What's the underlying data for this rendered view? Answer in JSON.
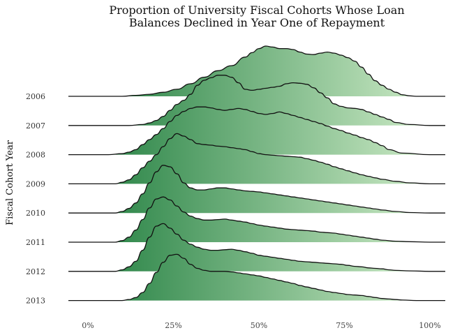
{
  "chart_data": {
    "type": "ridgeline",
    "title_lines": [
      "Proportion of University Fiscal Cohorts Whose Loan",
      "Balances Declined in Year One of Repayment"
    ],
    "xlabel": "",
    "ylabel": "Fiscal Cohort Year",
    "xlim": [
      0,
      100
    ],
    "xticks": [
      0,
      25,
      50,
      75,
      100
    ],
    "xtick_labels": [
      "0%",
      "25%",
      "50%",
      "75%",
      "100%"
    ],
    "grid": false,
    "fill_gradient": [
      "#1a7a3a",
      "#d4efcc"
    ],
    "series": [
      {
        "name": "2006",
        "x": [
          0,
          10,
          14,
          18,
          22,
          26,
          30,
          34,
          38,
          42,
          46,
          48,
          50,
          52,
          54,
          56,
          58,
          60,
          62,
          64,
          66,
          68,
          70,
          72,
          74,
          76,
          78,
          80,
          82,
          84,
          86,
          88,
          90,
          92,
          94,
          96,
          98,
          100
        ],
        "y": [
          0,
          0,
          0.02,
          0.04,
          0.08,
          0.14,
          0.25,
          0.38,
          0.51,
          0.61,
          0.78,
          0.87,
          0.95,
          1.0,
          0.98,
          0.95,
          0.95,
          0.93,
          0.88,
          0.84,
          0.83,
          0.86,
          0.88,
          0.86,
          0.82,
          0.77,
          0.7,
          0.58,
          0.44,
          0.31,
          0.22,
          0.14,
          0.08,
          0.03,
          0.01,
          0,
          0,
          0
        ]
      },
      {
        "name": "2007",
        "x": [
          0,
          12,
          16,
          18,
          20,
          22,
          24,
          26,
          28,
          30,
          32,
          34,
          36,
          38,
          40,
          42,
          44,
          46,
          48,
          50,
          52,
          54,
          56,
          58,
          60,
          62,
          64,
          66,
          68,
          70,
          72,
          74,
          76,
          78,
          80,
          82,
          84,
          86,
          88,
          90,
          94,
          100
        ],
        "y": [
          0,
          0,
          0.02,
          0.05,
          0.1,
          0.18,
          0.3,
          0.42,
          0.5,
          0.62,
          0.8,
          0.9,
          0.95,
          1.0,
          1.0,
          0.96,
          0.85,
          0.72,
          0.7,
          0.72,
          0.74,
          0.76,
          0.78,
          0.83,
          0.85,
          0.84,
          0.82,
          0.75,
          0.65,
          0.55,
          0.43,
          0.38,
          0.35,
          0.34,
          0.32,
          0.27,
          0.22,
          0.17,
          0.12,
          0.06,
          0.02,
          0
        ]
      },
      {
        "name": "2008",
        "x": [
          0,
          6,
          10,
          12,
          14,
          16,
          18,
          20,
          22,
          24,
          26,
          28,
          30,
          32,
          34,
          36,
          38,
          40,
          42,
          44,
          46,
          48,
          50,
          52,
          54,
          56,
          58,
          60,
          62,
          64,
          66,
          68,
          70,
          72,
          74,
          76,
          78,
          80,
          82,
          84,
          86,
          88,
          92,
          100
        ],
        "y": [
          0,
          0,
          0.02,
          0.05,
          0.1,
          0.2,
          0.3,
          0.4,
          0.52,
          0.66,
          0.78,
          0.86,
          0.92,
          0.95,
          0.95,
          0.93,
          0.9,
          0.88,
          0.9,
          0.92,
          0.9,
          0.86,
          0.82,
          0.8,
          0.82,
          0.85,
          0.82,
          0.78,
          0.74,
          0.7,
          0.66,
          0.62,
          0.57,
          0.52,
          0.48,
          0.43,
          0.39,
          0.34,
          0.3,
          0.24,
          0.18,
          0.1,
          0.03,
          0
        ]
      },
      {
        "name": "2009",
        "x": [
          0,
          8,
          10,
          12,
          14,
          16,
          18,
          20,
          22,
          24,
          26,
          28,
          30,
          32,
          34,
          36,
          38,
          40,
          42,
          44,
          46,
          48,
          50,
          52,
          54,
          56,
          58,
          60,
          62,
          64,
          66,
          68,
          70,
          72,
          74,
          76,
          78,
          80,
          82,
          84,
          86,
          90,
          94,
          100
        ],
        "y": [
          0,
          0,
          0.03,
          0.08,
          0.18,
          0.32,
          0.45,
          0.58,
          0.74,
          0.9,
          1.0,
          0.95,
          0.88,
          0.8,
          0.78,
          0.77,
          0.75,
          0.74,
          0.72,
          0.7,
          0.68,
          0.64,
          0.6,
          0.58,
          0.57,
          0.56,
          0.55,
          0.54,
          0.53,
          0.5,
          0.47,
          0.43,
          0.39,
          0.34,
          0.3,
          0.26,
          0.22,
          0.18,
          0.15,
          0.12,
          0.09,
          0.05,
          0.02,
          0
        ]
      },
      {
        "name": "2010",
        "x": [
          0,
          8,
          10,
          12,
          14,
          16,
          18,
          20,
          22,
          24,
          26,
          28,
          30,
          32,
          34,
          36,
          38,
          40,
          42,
          44,
          46,
          48,
          50,
          52,
          54,
          56,
          58,
          60,
          62,
          64,
          66,
          68,
          70,
          72,
          74,
          76,
          78,
          80,
          82,
          84,
          86,
          90,
          94,
          100
        ],
        "y": [
          0,
          0,
          0.03,
          0.09,
          0.2,
          0.38,
          0.6,
          0.82,
          0.95,
          0.92,
          0.78,
          0.6,
          0.5,
          0.46,
          0.46,
          0.48,
          0.5,
          0.5,
          0.48,
          0.46,
          0.44,
          0.43,
          0.42,
          0.4,
          0.38,
          0.36,
          0.34,
          0.32,
          0.3,
          0.28,
          0.26,
          0.24,
          0.22,
          0.2,
          0.18,
          0.16,
          0.14,
          0.12,
          0.1,
          0.08,
          0.06,
          0.03,
          0.01,
          0
        ]
      },
      {
        "name": "2011",
        "x": [
          0,
          8,
          10,
          12,
          14,
          16,
          18,
          20,
          22,
          24,
          26,
          28,
          30,
          32,
          34,
          36,
          38,
          40,
          42,
          44,
          46,
          48,
          50,
          52,
          54,
          56,
          58,
          60,
          62,
          64,
          66,
          68,
          70,
          72,
          74,
          76,
          78,
          80,
          82,
          84,
          86,
          90,
          94,
          100
        ],
        "y": [
          0,
          0,
          0.03,
          0.1,
          0.24,
          0.45,
          0.68,
          0.86,
          0.9,
          0.84,
          0.72,
          0.6,
          0.52,
          0.47,
          0.44,
          0.44,
          0.45,
          0.46,
          0.44,
          0.42,
          0.4,
          0.37,
          0.34,
          0.32,
          0.3,
          0.28,
          0.26,
          0.25,
          0.24,
          0.23,
          0.22,
          0.2,
          0.19,
          0.18,
          0.16,
          0.14,
          0.12,
          0.1,
          0.08,
          0.06,
          0.04,
          0.02,
          0.01,
          0
        ]
      },
      {
        "name": "2012",
        "x": [
          0,
          8,
          10,
          12,
          14,
          16,
          18,
          20,
          22,
          24,
          26,
          28,
          30,
          32,
          34,
          36,
          38,
          40,
          42,
          44,
          46,
          48,
          50,
          52,
          54,
          56,
          58,
          60,
          62,
          64,
          66,
          68,
          70,
          72,
          74,
          76,
          78,
          80,
          82,
          84,
          86,
          88,
          90,
          94,
          100
        ],
        "y": [
          0,
          0,
          0.03,
          0.09,
          0.2,
          0.42,
          0.68,
          0.9,
          0.95,
          0.86,
          0.74,
          0.62,
          0.54,
          0.48,
          0.44,
          0.42,
          0.42,
          0.43,
          0.44,
          0.42,
          0.39,
          0.36,
          0.32,
          0.3,
          0.28,
          0.26,
          0.24,
          0.22,
          0.2,
          0.19,
          0.18,
          0.17,
          0.16,
          0.15,
          0.14,
          0.12,
          0.1,
          0.09,
          0.07,
          0.06,
          0.05,
          0.03,
          0.02,
          0.01,
          0
        ]
      },
      {
        "name": "2013",
        "x": [
          0,
          10,
          12,
          14,
          16,
          18,
          20,
          22,
          24,
          26,
          28,
          30,
          32,
          34,
          36,
          38,
          40,
          42,
          44,
          46,
          48,
          50,
          52,
          54,
          56,
          58,
          60,
          62,
          64,
          66,
          68,
          70,
          72,
          74,
          76,
          78,
          80,
          82,
          84,
          86,
          88,
          90,
          92,
          96,
          100
        ],
        "y": [
          0,
          0,
          0.02,
          0.06,
          0.16,
          0.34,
          0.56,
          0.76,
          0.9,
          0.92,
          0.84,
          0.72,
          0.64,
          0.6,
          0.58,
          0.58,
          0.58,
          0.57,
          0.55,
          0.53,
          0.51,
          0.49,
          0.46,
          0.43,
          0.4,
          0.37,
          0.34,
          0.3,
          0.27,
          0.24,
          0.21,
          0.18,
          0.16,
          0.14,
          0.12,
          0.11,
          0.1,
          0.08,
          0.06,
          0.04,
          0.03,
          0.02,
          0.01,
          0,
          0
        ]
      }
    ]
  }
}
